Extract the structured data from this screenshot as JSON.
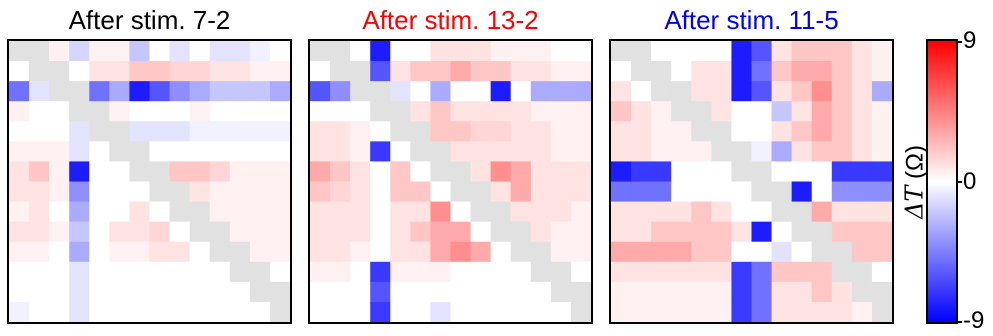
{
  "chart_data": {
    "type": "heatmap",
    "grid_size": 14,
    "diagonal_band_color": "#e1e1e1",
    "colormap": {
      "negative": "#0000ff",
      "zero": "#ffffff",
      "positive": "#ff0000"
    },
    "colorbar": {
      "label_symbol": "ΔT",
      "label_unit": "(Ω)",
      "min": -9,
      "max": 9,
      "tick_labels": [
        "9",
        "0",
        "-9"
      ]
    },
    "panels": [
      {
        "title": "After stim. 7-2",
        "title_color": "#000000",
        "values": [
          [
            0,
            0,
            0.5,
            -1.5,
            0.5,
            0.5,
            -2,
            0,
            -1,
            0,
            -1,
            -1,
            -0.5,
            0
          ],
          [
            0,
            0,
            0,
            0,
            1,
            1,
            2,
            2,
            1.5,
            1.5,
            1,
            1,
            0.5,
            0.5
          ],
          [
            -5,
            -1,
            0,
            0,
            -5,
            -3,
            -8,
            -6,
            -4,
            -3,
            -2,
            -2,
            -2,
            -3
          ],
          [
            0.5,
            0,
            0,
            0,
            0,
            0.5,
            0,
            0,
            0,
            0.5,
            0,
            0,
            0,
            0
          ],
          [
            0,
            0,
            0,
            -1,
            0,
            0,
            -1,
            -1,
            -1,
            -0.5,
            -0.5,
            -0.5,
            -0.5,
            -0.5
          ],
          [
            0.5,
            0.5,
            0.5,
            -1,
            0,
            0,
            0,
            0,
            0,
            0,
            0,
            0,
            0,
            0
          ],
          [
            1,
            2,
            0.5,
            -8,
            0,
            0,
            0,
            1,
            2,
            2,
            1.5,
            0.5,
            0.5,
            0.5
          ],
          [
            1,
            1,
            0.5,
            -4,
            0,
            0,
            0,
            0,
            1,
            1,
            0.5,
            0.5,
            0.5,
            0.5
          ],
          [
            0.5,
            1,
            0,
            -3,
            0,
            0,
            1,
            0,
            0,
            0.5,
            0.5,
            0.5,
            0.5,
            0.5
          ],
          [
            1,
            1,
            0.5,
            -2,
            0,
            1,
            1,
            1.5,
            0,
            0,
            0.5,
            0.5,
            0.5,
            0.5
          ],
          [
            0.5,
            0.5,
            0,
            -3,
            0,
            0.5,
            0.5,
            1,
            1,
            0,
            0,
            0,
            0.5,
            0.5
          ],
          [
            0,
            0,
            0,
            -1,
            0,
            0,
            0,
            0,
            0,
            0,
            0,
            0,
            0,
            0
          ],
          [
            0,
            0,
            0,
            -1,
            0,
            0,
            0,
            0,
            0,
            0,
            0,
            0,
            0,
            0
          ],
          [
            -0.5,
            0,
            0,
            -1,
            0,
            0,
            0,
            0,
            0,
            0,
            0,
            0,
            0,
            0
          ]
        ]
      },
      {
        "title": "After stim. 13-2",
        "title_color": "#ff0000",
        "values": [
          [
            0,
            0,
            0,
            -8,
            0,
            0,
            1,
            1,
            1,
            0.5,
            0.5,
            0.5,
            0,
            0
          ],
          [
            0,
            0,
            0,
            -6,
            1,
            2,
            2,
            3,
            2,
            2,
            1,
            1,
            0.5,
            0.5
          ],
          [
            -6,
            -4,
            0,
            0,
            -1,
            0,
            -3,
            0,
            0,
            -8,
            0,
            -3,
            -3,
            -3
          ],
          [
            0,
            0,
            0,
            0,
            1,
            1,
            2,
            1,
            1,
            1,
            1,
            0.5,
            0.5,
            0.5
          ],
          [
            1,
            1,
            0.5,
            0,
            0,
            1,
            2,
            2,
            1.5,
            1.5,
            1,
            1,
            0.5,
            0.5
          ],
          [
            1,
            1,
            0.5,
            -7,
            0,
            0,
            2,
            1,
            1,
            1,
            1,
            1,
            0.5,
            0.5
          ],
          [
            3,
            2,
            1,
            0,
            2,
            0,
            0,
            1,
            1,
            4,
            3,
            1,
            1,
            1
          ],
          [
            2,
            1.5,
            1,
            0,
            2,
            2,
            0,
            0,
            1,
            1,
            3,
            1,
            1,
            1
          ],
          [
            1,
            1,
            1,
            0,
            1,
            1,
            4,
            0,
            0,
            2,
            1,
            1,
            1,
            0.5
          ],
          [
            1,
            1,
            1,
            0,
            1,
            2,
            3,
            3,
            0,
            0,
            1,
            1,
            0.5,
            0.5
          ],
          [
            1,
            1,
            0.5,
            0,
            1,
            1,
            3,
            4,
            3,
            0,
            0,
            0.5,
            0.5,
            0.5
          ],
          [
            0.5,
            0.5,
            0,
            -7,
            0.5,
            0.5,
            0.5,
            0,
            0,
            0,
            0,
            0,
            0,
            0
          ],
          [
            0,
            0,
            0,
            -6,
            0,
            0,
            0,
            0,
            0,
            0,
            0,
            0,
            0,
            0
          ],
          [
            0,
            0,
            0,
            -7,
            0,
            0,
            -1,
            0,
            0,
            0,
            0,
            0,
            0,
            0
          ]
        ]
      },
      {
        "title": "After stim. 11-5",
        "title_color": "#0000ff",
        "values": [
          [
            0,
            0,
            0,
            0,
            0,
            0,
            -8,
            -6,
            1,
            2,
            2,
            2,
            1,
            0.5
          ],
          [
            0,
            0,
            0,
            0,
            1,
            1,
            -8,
            -5,
            2,
            3,
            3,
            2,
            1,
            0.5
          ],
          [
            1,
            0,
            0,
            0,
            1,
            1,
            -8,
            -6,
            1,
            2,
            4,
            2,
            1,
            -3
          ],
          [
            2,
            1,
            0.5,
            0,
            1,
            1,
            0,
            0,
            -2,
            1,
            3,
            2,
            1,
            0.5
          ],
          [
            1,
            1,
            0.5,
            0.5,
            0,
            1,
            0,
            0,
            1,
            2,
            3,
            2,
            1,
            0.5
          ],
          [
            1,
            1,
            0.5,
            0.5,
            0.5,
            0,
            0,
            -0.5,
            -3,
            1,
            2,
            2,
            1,
            0.5
          ],
          [
            -8,
            -7,
            -7,
            0,
            0,
            0,
            0,
            0,
            0,
            0,
            0,
            -7,
            -7,
            -7
          ],
          [
            -5,
            -5,
            -5,
            0,
            0,
            0,
            0,
            0,
            0,
            -8,
            0,
            -4,
            -4,
            -4
          ],
          [
            1,
            1,
            1,
            1,
            2,
            1,
            0,
            0,
            -1,
            0,
            3,
            1,
            1,
            1
          ],
          [
            1,
            1,
            2,
            2,
            2,
            2,
            1,
            -8,
            0,
            0,
            0,
            2,
            2,
            2
          ],
          [
            3,
            3,
            3,
            3,
            2,
            2,
            0,
            0,
            -1,
            0,
            0,
            2,
            2,
            2
          ],
          [
            1,
            1,
            1,
            1,
            1,
            1,
            -7,
            -5,
            2,
            2,
            2,
            0,
            0,
            0
          ],
          [
            0.5,
            0.5,
            0.5,
            0.5,
            0.5,
            0.5,
            -7,
            -5,
            1,
            1,
            2,
            1,
            0,
            0
          ],
          [
            0.5,
            0.5,
            0.5,
            0.5,
            0.5,
            0.5,
            -7,
            -5,
            1,
            1,
            1,
            1,
            0.5,
            0
          ]
        ]
      }
    ]
  }
}
